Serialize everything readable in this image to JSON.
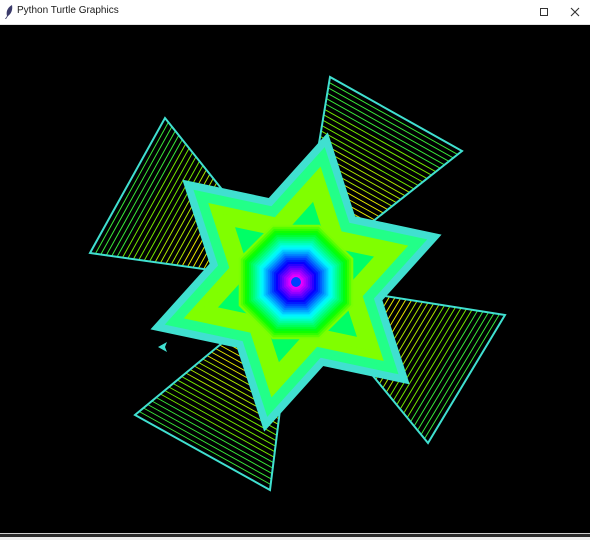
{
  "window": {
    "title": "Python Turtle Graphics",
    "buttons": {
      "maximize": "□",
      "close": "✕"
    }
  },
  "canvas": {
    "background": "#000000",
    "outline_color": "#40e0d0",
    "palette": [
      "#ff0000",
      "#ff8000",
      "#ffff00",
      "#00ff00",
      "#00ffff",
      "#0000ff",
      "#ff00ff"
    ]
  }
}
